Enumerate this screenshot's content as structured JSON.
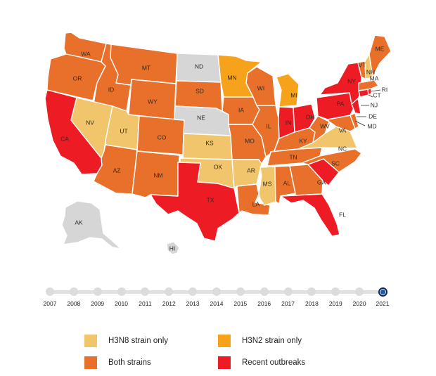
{
  "legend": {
    "items": [
      {
        "label": "H3N8 strain only",
        "color": "#f0c56c"
      },
      {
        "label": "H3N2 strain only",
        "color": "#f7a21b"
      },
      {
        "label": "Both strains",
        "color": "#e8702a"
      },
      {
        "label": "Recent outbreaks",
        "color": "#ed1c24"
      }
    ]
  },
  "colors": {
    "no_data": "#d6d6d6",
    "h3n8": "#f0c56c",
    "h3n2": "#f7a21b",
    "both": "#e8702a",
    "outbreak": "#ed1c24"
  },
  "timeline": {
    "years": [
      "2007",
      "2008",
      "2009",
      "2010",
      "2011",
      "2012",
      "2013",
      "2014",
      "2015",
      "2016",
      "2017",
      "2018",
      "2019",
      "2020",
      "2021"
    ],
    "selected": "2021"
  },
  "states": {
    "WA": {
      "label": "WA",
      "status": "both"
    },
    "OR": {
      "label": "OR",
      "status": "both"
    },
    "CA": {
      "label": "CA",
      "status": "outbreak"
    },
    "ID": {
      "label": "ID",
      "status": "both"
    },
    "NV": {
      "label": "NV",
      "status": "h3n8"
    },
    "MT": {
      "label": "MT",
      "status": "both"
    },
    "WY": {
      "label": "WY",
      "status": "both"
    },
    "UT": {
      "label": "UT",
      "status": "h3n8"
    },
    "AZ": {
      "label": "AZ",
      "status": "both"
    },
    "CO": {
      "label": "CO",
      "status": "both"
    },
    "NM": {
      "label": "NM",
      "status": "both"
    },
    "ND": {
      "label": "ND",
      "status": "no_data"
    },
    "SD": {
      "label": "SD",
      "status": "both"
    },
    "NE": {
      "label": "NE",
      "status": "no_data"
    },
    "KS": {
      "label": "KS",
      "status": "h3n8"
    },
    "OK": {
      "label": "OK",
      "status": "h3n8"
    },
    "TX": {
      "label": "TX",
      "status": "outbreak"
    },
    "MN": {
      "label": "MN",
      "status": "h3n2"
    },
    "IA": {
      "label": "IA",
      "status": "both"
    },
    "MO": {
      "label": "MO",
      "status": "both"
    },
    "AR": {
      "label": "AR",
      "status": "h3n8"
    },
    "LA": {
      "label": "LA",
      "status": "both"
    },
    "WI": {
      "label": "WI",
      "status": "both"
    },
    "IL": {
      "label": "IL",
      "status": "both"
    },
    "MI": {
      "label": "MI",
      "status": "h3n2"
    },
    "IN": {
      "label": "IN",
      "status": "outbreak"
    },
    "OH": {
      "label": "OH",
      "status": "outbreak"
    },
    "KY": {
      "label": "KY",
      "status": "both"
    },
    "TN": {
      "label": "TN",
      "status": "both"
    },
    "MS": {
      "label": "MS",
      "status": "h3n8"
    },
    "AL": {
      "label": "AL",
      "status": "both"
    },
    "GA": {
      "label": "GA",
      "status": "both"
    },
    "FL": {
      "label": "FL",
      "status": "outbreak"
    },
    "SC": {
      "label": "SC",
      "status": "outbreak"
    },
    "NC": {
      "label": "NC",
      "status": "both"
    },
    "VA": {
      "label": "VA",
      "status": "h3n8"
    },
    "WV": {
      "label": "WV",
      "status": "both"
    },
    "MD": {
      "label": "MD",
      "status": "both"
    },
    "DE": {
      "label": "DE",
      "status": "both"
    },
    "PA": {
      "label": "PA",
      "status": "outbreak"
    },
    "NJ": {
      "label": "NJ",
      "status": "outbreak"
    },
    "NY": {
      "label": "NY",
      "status": "outbreak"
    },
    "CT": {
      "label": "CT",
      "status": "outbreak"
    },
    "RI": {
      "label": "RI",
      "status": "outbreak"
    },
    "MA": {
      "label": "MA",
      "status": "both"
    },
    "VT": {
      "label": "VT",
      "status": "both"
    },
    "NH": {
      "label": "NH",
      "status": "h3n8"
    },
    "ME": {
      "label": "ME",
      "status": "both"
    },
    "AK": {
      "label": "AK",
      "status": "no_data"
    },
    "HI": {
      "label": "HI",
      "status": "no_data"
    }
  }
}
